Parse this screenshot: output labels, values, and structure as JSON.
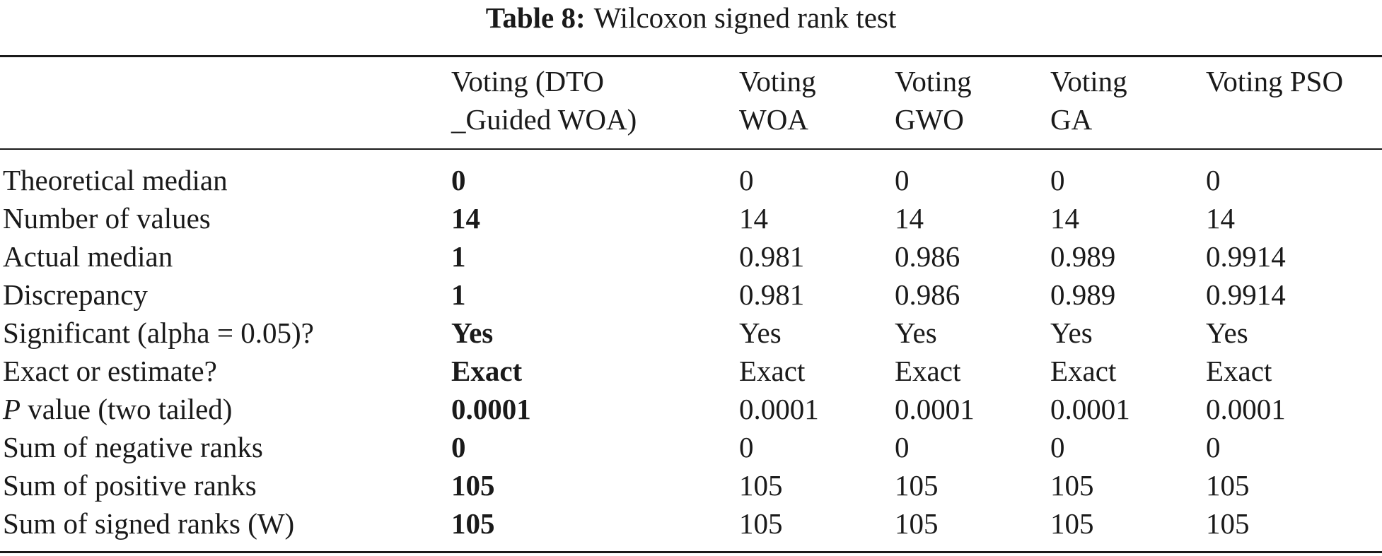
{
  "caption": {
    "label": "Table 8:",
    "text": "Wilcoxon signed rank test"
  },
  "columns": [
    {
      "line1": "Voting (DTO",
      "line2": "_Guided WOA)"
    },
    {
      "line1": "Voting",
      "line2": "WOA"
    },
    {
      "line1": "Voting",
      "line2": "GWO"
    },
    {
      "line1": "Voting",
      "line2": "GA"
    },
    {
      "line1": "Voting PSO",
      "line2": ""
    }
  ],
  "rows": [
    {
      "label": "Theoretical median",
      "values": [
        "0",
        "0",
        "0",
        "0",
        "0"
      ]
    },
    {
      "label": "Number of values",
      "values": [
        "14",
        "14",
        "14",
        "14",
        "14"
      ]
    },
    {
      "label": "Actual median",
      "values": [
        "1",
        "0.981",
        "0.986",
        "0.989",
        "0.9914"
      ]
    },
    {
      "label": "Discrepancy",
      "values": [
        "1",
        "0.981",
        "0.986",
        "0.989",
        "0.9914"
      ]
    },
    {
      "label": "Significant (alpha = 0.05)?",
      "values": [
        "Yes",
        "Yes",
        "Yes",
        "Yes",
        "Yes"
      ]
    },
    {
      "label": "Exact or estimate?",
      "values": [
        "Exact",
        "Exact",
        "Exact",
        "Exact",
        "Exact"
      ]
    },
    {
      "label_italic": "P",
      "label": " value (two tailed)",
      "values": [
        "0.0001",
        "0.0001",
        "0.0001",
        "0.0001",
        "0.0001"
      ]
    },
    {
      "label": "Sum of negative ranks",
      "values": [
        "0",
        "0",
        "0",
        "0",
        "0"
      ]
    },
    {
      "label": "Sum of positive ranks",
      "values": [
        "105",
        "105",
        "105",
        "105",
        "105"
      ]
    },
    {
      "label": "Sum of signed ranks (W)",
      "values": [
        "105",
        "105",
        "105",
        "105",
        "105"
      ]
    }
  ]
}
